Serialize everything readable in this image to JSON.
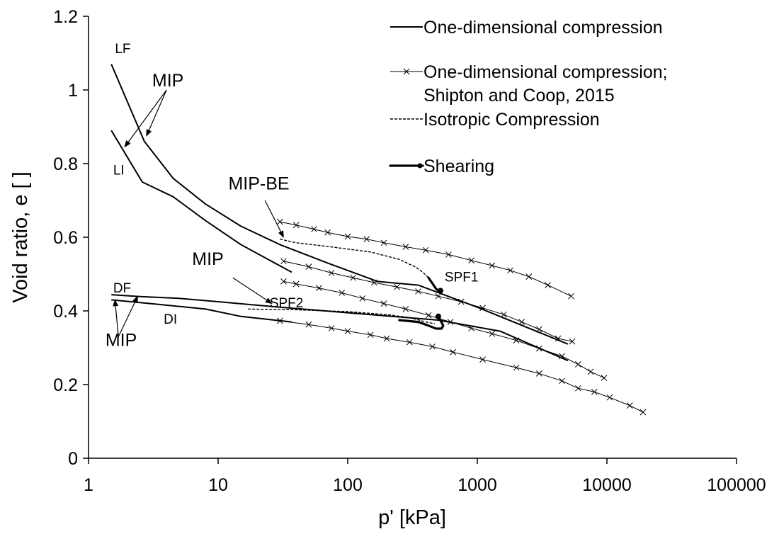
{
  "chart_data": {
    "type": "line",
    "xlabel": "p' [kPa]",
    "ylabel": "Void ratio, e [ ]",
    "x_scale": "log",
    "xlim": [
      1,
      100000
    ],
    "ylim": [
      0,
      1.2
    ],
    "x_ticks": [
      1,
      10,
      100,
      1000,
      10000,
      100000
    ],
    "x_tick_labels": [
      "1",
      "10",
      "100",
      "1000",
      "10000",
      "100000"
    ],
    "y_ticks": [
      0,
      0.2,
      0.4,
      0.6,
      0.8,
      1.0,
      1.2
    ],
    "y_tick_labels": [
      "0",
      "0.2",
      "0.4",
      "0.6",
      "0.8",
      "1",
      "1.2"
    ],
    "grid": false,
    "legend_position": "top-right",
    "legend": [
      {
        "style": "solid",
        "label": "One-dimensional compression"
      },
      {
        "style": "cross",
        "label": "One-dimensional compression;",
        "label2": "Shipton and Coop, 2015"
      },
      {
        "style": "dashed",
        "label": "Isotropic Compression"
      },
      {
        "style": "shear",
        "label": "Shearing"
      }
    ],
    "series": [
      {
        "style": "solid",
        "points": [
          [
            1.5,
            1.07
          ],
          [
            2.7,
            0.86
          ],
          [
            4.5,
            0.76
          ],
          [
            8,
            0.69
          ],
          [
            15,
            0.63
          ],
          [
            30,
            0.58
          ],
          [
            70,
            0.53
          ],
          [
            170,
            0.48
          ],
          [
            350,
            0.47
          ],
          [
            1000,
            0.41
          ],
          [
            5000,
            0.31
          ]
        ]
      },
      {
        "style": "solid",
        "points": [
          [
            1.5,
            0.89
          ],
          [
            2.6,
            0.75
          ],
          [
            4.5,
            0.71
          ],
          [
            8,
            0.645
          ],
          [
            15,
            0.58
          ],
          [
            37,
            0.505
          ]
        ]
      },
      {
        "style": "solid",
        "points": [
          [
            1.5,
            0.444
          ],
          [
            2.5,
            0.439
          ],
          [
            5,
            0.434
          ],
          [
            10,
            0.425
          ],
          [
            30,
            0.41
          ],
          [
            100,
            0.395
          ],
          [
            500,
            0.375
          ],
          [
            1500,
            0.345
          ],
          [
            5000,
            0.265
          ]
        ]
      },
      {
        "style": "solid",
        "points": [
          [
            1.5,
            0.43
          ],
          [
            3,
            0.42
          ],
          [
            8,
            0.405
          ],
          [
            15,
            0.385
          ],
          [
            37,
            0.37
          ]
        ]
      },
      {
        "style": "cross",
        "points": [
          [
            30,
            0.642
          ],
          [
            40,
            0.633
          ],
          [
            55,
            0.622
          ],
          [
            70,
            0.613
          ],
          [
            100,
            0.602
          ],
          [
            140,
            0.595
          ],
          [
            190,
            0.585
          ],
          [
            280,
            0.574
          ],
          [
            400,
            0.565
          ],
          [
            600,
            0.553
          ],
          [
            900,
            0.537
          ],
          [
            1300,
            0.523
          ],
          [
            1800,
            0.51
          ],
          [
            2500,
            0.493
          ],
          [
            3500,
            0.47
          ],
          [
            5300,
            0.44
          ]
        ]
      },
      {
        "style": "cross",
        "points": [
          [
            32,
            0.535
          ],
          [
            50,
            0.52
          ],
          [
            75,
            0.503
          ],
          [
            110,
            0.49
          ],
          [
            160,
            0.477
          ],
          [
            240,
            0.465
          ],
          [
            350,
            0.453
          ],
          [
            500,
            0.44
          ],
          [
            750,
            0.425
          ],
          [
            1100,
            0.408
          ],
          [
            1600,
            0.39
          ],
          [
            2200,
            0.37
          ],
          [
            3000,
            0.35
          ],
          [
            4200,
            0.325
          ],
          [
            5400,
            0.317
          ]
        ]
      },
      {
        "style": "cross",
        "points": [
          [
            32,
            0.48
          ],
          [
            40,
            0.473
          ],
          [
            60,
            0.462
          ],
          [
            90,
            0.449
          ],
          [
            130,
            0.434
          ],
          [
            190,
            0.42
          ],
          [
            280,
            0.405
          ],
          [
            420,
            0.388
          ],
          [
            620,
            0.37
          ],
          [
            900,
            0.353
          ],
          [
            1300,
            0.338
          ],
          [
            2000,
            0.32
          ],
          [
            3000,
            0.298
          ],
          [
            4500,
            0.277
          ],
          [
            6000,
            0.255
          ],
          [
            7500,
            0.235
          ],
          [
            9500,
            0.218
          ]
        ]
      },
      {
        "style": "cross",
        "points": [
          [
            30,
            0.373
          ],
          [
            50,
            0.363
          ],
          [
            75,
            0.353
          ],
          [
            100,
            0.345
          ],
          [
            150,
            0.335
          ],
          [
            200,
            0.325
          ],
          [
            300,
            0.315
          ],
          [
            450,
            0.303
          ],
          [
            650,
            0.288
          ],
          [
            1100,
            0.268
          ],
          [
            2000,
            0.246
          ],
          [
            3000,
            0.23
          ],
          [
            4500,
            0.21
          ],
          [
            6000,
            0.19
          ],
          [
            8000,
            0.18
          ],
          [
            10500,
            0.165
          ],
          [
            15000,
            0.143
          ],
          [
            19000,
            0.125
          ]
        ]
      },
      {
        "style": "dashed",
        "points": [
          [
            30,
            0.595
          ],
          [
            40,
            0.585
          ],
          [
            70,
            0.575
          ],
          [
            150,
            0.56
          ],
          [
            250,
            0.54
          ],
          [
            330,
            0.52
          ],
          [
            380,
            0.505
          ],
          [
            420,
            0.49
          ]
        ]
      },
      {
        "style": "dashed",
        "points": [
          [
            17,
            0.405
          ],
          [
            40,
            0.403
          ],
          [
            100,
            0.398
          ],
          [
            200,
            0.39
          ],
          [
            300,
            0.382
          ],
          [
            400,
            0.37
          ],
          [
            470,
            0.365
          ]
        ]
      },
      {
        "style": "shear",
        "points": [
          [
            420,
            0.49
          ],
          [
            460,
            0.47
          ],
          [
            480,
            0.46
          ],
          [
            500,
            0.455
          ],
          [
            520,
            0.455
          ]
        ],
        "end_marker": true
      },
      {
        "style": "shear",
        "points": [
          [
            250,
            0.375
          ],
          [
            350,
            0.37
          ],
          [
            420,
            0.36
          ],
          [
            480,
            0.352
          ],
          [
            530,
            0.352
          ],
          [
            545,
            0.36
          ],
          [
            520,
            0.375
          ],
          [
            500,
            0.385
          ]
        ],
        "end_marker": true
      }
    ],
    "annotations": [
      {
        "text": "LF",
        "size": "small",
        "x": 1.6,
        "y": 1.1
      },
      {
        "text": "LI",
        "size": "small",
        "x": 1.55,
        "y": 0.77
      },
      {
        "text": "DF",
        "size": "small",
        "x": 1.55,
        "y": 0.45
      },
      {
        "text": "DI",
        "size": "small",
        "x": 3.8,
        "y": 0.365
      },
      {
        "text": "SPF1",
        "size": "small",
        "x": 560,
        "y": 0.48
      },
      {
        "text": "SPF2",
        "size": "small",
        "x": 25,
        "y": 0.41
      },
      {
        "text": "MIP",
        "size": "big",
        "x": 3.1,
        "y": 1.01
      },
      {
        "text": "MIP-BE",
        "size": "big",
        "x": 12,
        "y": 0.73
      },
      {
        "text": "MIP",
        "size": "big",
        "x": 6.3,
        "y": 0.525
      },
      {
        "text": "MIP",
        "size": "big",
        "x": 1.35,
        "y": 0.305
      }
    ],
    "arrows": [
      {
        "from": [
          4.0,
          1.0
        ],
        "to": [
          1.9,
          0.845
        ]
      },
      {
        "from": [
          4.0,
          1.0
        ],
        "to": [
          2.8,
          0.875
        ]
      },
      {
        "from": [
          23,
          0.7
        ],
        "to": [
          32,
          0.6
        ]
      },
      {
        "from": [
          13,
          0.49
        ],
        "to": [
          26,
          0.42
        ]
      },
      {
        "from": [
          1.7,
          0.33
        ],
        "to": [
          1.6,
          0.43
        ]
      },
      {
        "from": [
          1.7,
          0.33
        ],
        "to": [
          2.4,
          0.44
        ]
      }
    ]
  }
}
